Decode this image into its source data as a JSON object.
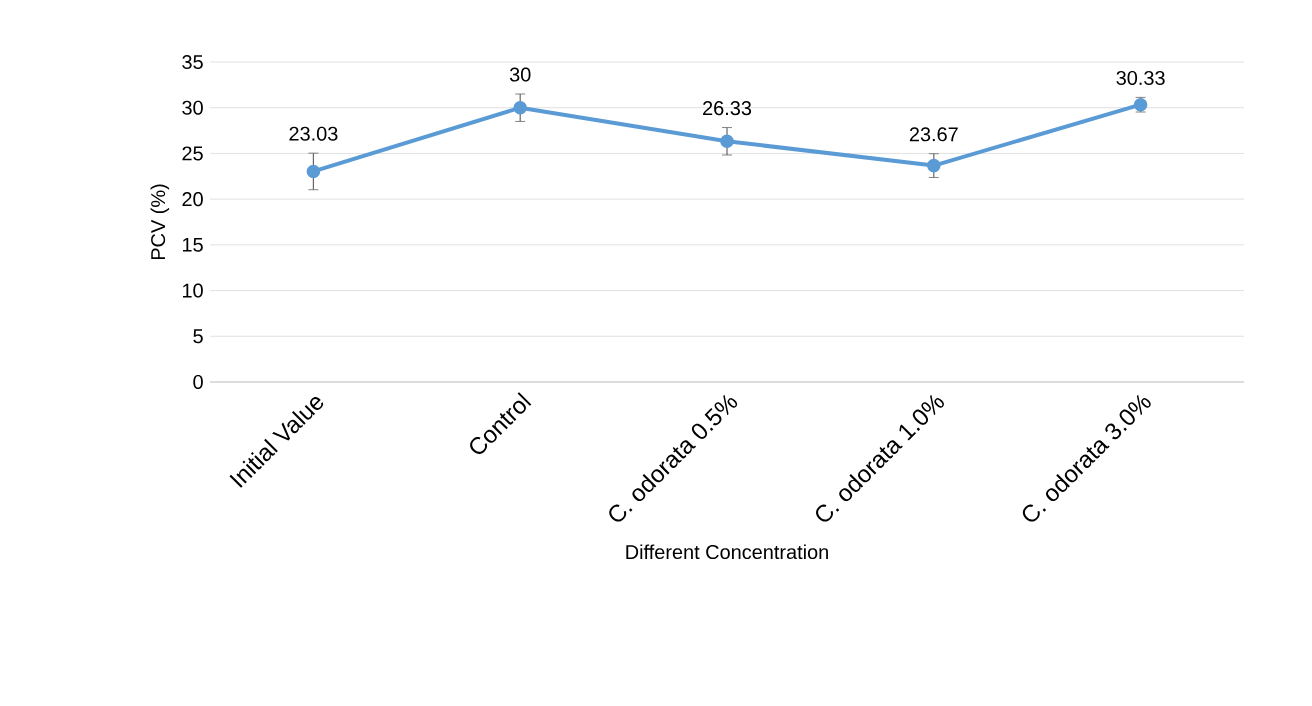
{
  "chart_data": {
    "type": "line",
    "xlabel": "Different  Concentration",
    "ylabel": "PCV (%)",
    "categories": [
      "Initial Value",
      "Control",
      "C. odorata 0.5%",
      "C. odorata 1.0%",
      "C. odorata 3.0%"
    ],
    "series": [
      {
        "color": "#5b9bd5",
        "values": [
          23.03,
          30,
          26.33,
          23.67,
          30.33
        ],
        "errors": [
          2,
          1.5,
          1.5,
          1.3,
          0.8
        ]
      }
    ],
    "ylim": [
      0,
      35
    ],
    "yticks": [
      0,
      5,
      10,
      15,
      20,
      25,
      30,
      35
    ],
    "grid": "y",
    "marker": "circle",
    "line_style": "solid",
    "data_labels": true
  }
}
